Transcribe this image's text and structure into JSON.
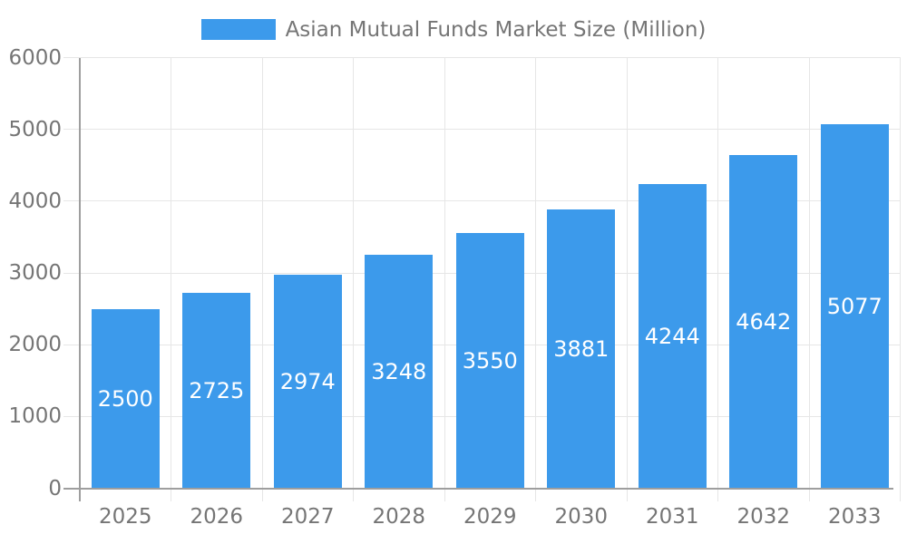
{
  "legend": {
    "label": "Asian Mutual Funds Market Size (Million)"
  },
  "chart_data": {
    "type": "bar",
    "title": "Asian Mutual Funds Market Size (Million)",
    "categories": [
      "2025",
      "2026",
      "2027",
      "2028",
      "2029",
      "2030",
      "2031",
      "2032",
      "2033"
    ],
    "values": [
      2500,
      2725,
      2974,
      3248,
      3550,
      3881,
      4244,
      4642,
      5077
    ],
    "series": [
      {
        "name": "Asian Mutual Funds Market Size (Million)",
        "values": [
          2500,
          2725,
          2974,
          3248,
          3550,
          3881,
          4244,
          4642,
          5077
        ]
      }
    ],
    "xlabel": "",
    "ylabel": "",
    "ylim": [
      0,
      6000
    ],
    "y_ticks": [
      0,
      1000,
      2000,
      3000,
      4000,
      5000,
      6000
    ],
    "grid": true,
    "legend_position": "top",
    "colors": {
      "bar": "#3C9AEB",
      "bar_label": "#FFFFFF",
      "axis": "#9E9E9E",
      "grid": "#E6E6E6",
      "tick_label": "#757575",
      "legend_text": "#757575",
      "background": "#FFFFFF"
    }
  }
}
